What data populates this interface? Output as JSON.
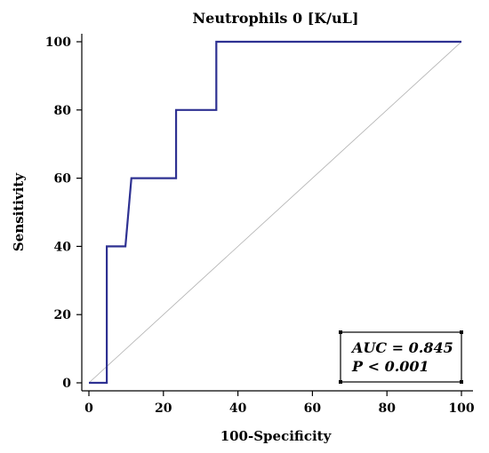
{
  "chart_data": {
    "type": "line",
    "title": "Neutrophils 0 [K/uL]",
    "xlabel": "100-Specificity",
    "ylabel": "Sensitivity",
    "xlim": [
      0,
      100
    ],
    "ylim": [
      0,
      100
    ],
    "xticks": [
      "0",
      "20",
      "40",
      "60",
      "80",
      "100"
    ],
    "yticks": [
      "0",
      "20",
      "40",
      "60",
      "80",
      "100"
    ],
    "grid": false,
    "series": [
      {
        "color": "#2e3192",
        "x": [
          0,
          4.8,
          4.8,
          9.8,
          11.4,
          23.4,
          23.4,
          34.2,
          34.2,
          100
        ],
        "y": [
          0,
          0,
          40,
          40,
          60,
          60,
          80,
          80,
          100,
          100
        ]
      },
      {
        "color": "#b0b0b0",
        "x": [
          0,
          100
        ],
        "y": [
          0,
          100
        ]
      }
    ],
    "annotations": [
      "AUC = 0.845",
      "P < 0.001"
    ],
    "annotation_placement": "bottom-right"
  }
}
